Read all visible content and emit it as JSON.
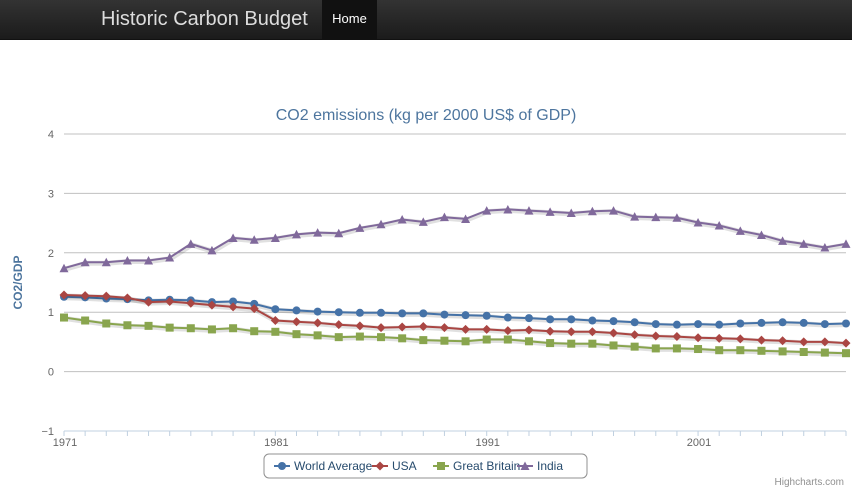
{
  "navbar": {
    "brand": "Historic Carbon Budget",
    "home_label": "Home"
  },
  "credits": "Highcharts.com",
  "colors": {
    "title": "#4d759e",
    "world": "#4572a7",
    "usa": "#aa4643",
    "gb": "#89a54e",
    "india": "#80699b"
  },
  "chart_data": {
    "type": "line",
    "title": "CO2 emissions (kg per 2000 US$ of GDP)",
    "ylabel": "CO2/GDP",
    "xlabel": "",
    "xlim": [
      1971,
      2008
    ],
    "ylim": [
      -1,
      4
    ],
    "yticks": [
      -1,
      0,
      1,
      2,
      3,
      4
    ],
    "xticks": [
      1971,
      1981,
      1991,
      2001
    ],
    "grid": "horizontal",
    "legend": "bottom-center",
    "x": [
      1971,
      1972,
      1973,
      1974,
      1975,
      1976,
      1977,
      1978,
      1979,
      1980,
      1981,
      1982,
      1983,
      1984,
      1985,
      1986,
      1987,
      1988,
      1989,
      1990,
      1991,
      1992,
      1993,
      1994,
      1995,
      1996,
      1997,
      1998,
      1999,
      2000,
      2001,
      2002,
      2003,
      2004,
      2005,
      2006,
      2007,
      2008
    ],
    "series": [
      {
        "name": "World Average",
        "color": "#4572a7",
        "marker": "circle",
        "values": [
          1.26,
          1.25,
          1.23,
          1.22,
          1.2,
          1.21,
          1.2,
          1.17,
          1.18,
          1.14,
          1.05,
          1.03,
          1.01,
          1.0,
          0.99,
          0.99,
          0.98,
          0.98,
          0.96,
          0.95,
          0.94,
          0.91,
          0.9,
          0.88,
          0.88,
          0.86,
          0.85,
          0.83,
          0.8,
          0.79,
          0.8,
          0.79,
          0.81,
          0.82,
          0.83,
          0.82,
          0.8,
          0.81
        ]
      },
      {
        "name": "USA",
        "color": "#aa4643",
        "marker": "diamond",
        "values": [
          1.29,
          1.28,
          1.27,
          1.24,
          1.17,
          1.18,
          1.15,
          1.12,
          1.09,
          1.06,
          0.86,
          0.84,
          0.82,
          0.79,
          0.77,
          0.74,
          0.75,
          0.76,
          0.74,
          0.71,
          0.71,
          0.69,
          0.7,
          0.68,
          0.67,
          0.67,
          0.65,
          0.62,
          0.6,
          0.59,
          0.57,
          0.56,
          0.55,
          0.53,
          0.52,
          0.5,
          0.5,
          0.48
        ]
      },
      {
        "name": "Great Britain",
        "color": "#89a54e",
        "marker": "square",
        "values": [
          0.91,
          0.86,
          0.81,
          0.78,
          0.77,
          0.74,
          0.73,
          0.71,
          0.73,
          0.68,
          0.67,
          0.63,
          0.61,
          0.58,
          0.59,
          0.58,
          0.56,
          0.53,
          0.52,
          0.51,
          0.54,
          0.54,
          0.51,
          0.48,
          0.47,
          0.47,
          0.44,
          0.42,
          0.39,
          0.39,
          0.38,
          0.36,
          0.36,
          0.35,
          0.34,
          0.33,
          0.32,
          0.31
        ]
      },
      {
        "name": "India",
        "color": "#80699b",
        "marker": "triangle",
        "values": [
          1.74,
          1.84,
          1.84,
          1.87,
          1.87,
          1.92,
          2.15,
          2.04,
          2.25,
          2.22,
          2.25,
          2.31,
          2.34,
          2.33,
          2.42,
          2.48,
          2.56,
          2.52,
          2.6,
          2.57,
          2.71,
          2.73,
          2.71,
          2.69,
          2.67,
          2.7,
          2.71,
          2.61,
          2.6,
          2.59,
          2.51,
          2.46,
          2.37,
          2.3,
          2.2,
          2.15,
          2.09,
          2.15
        ]
      }
    ]
  }
}
